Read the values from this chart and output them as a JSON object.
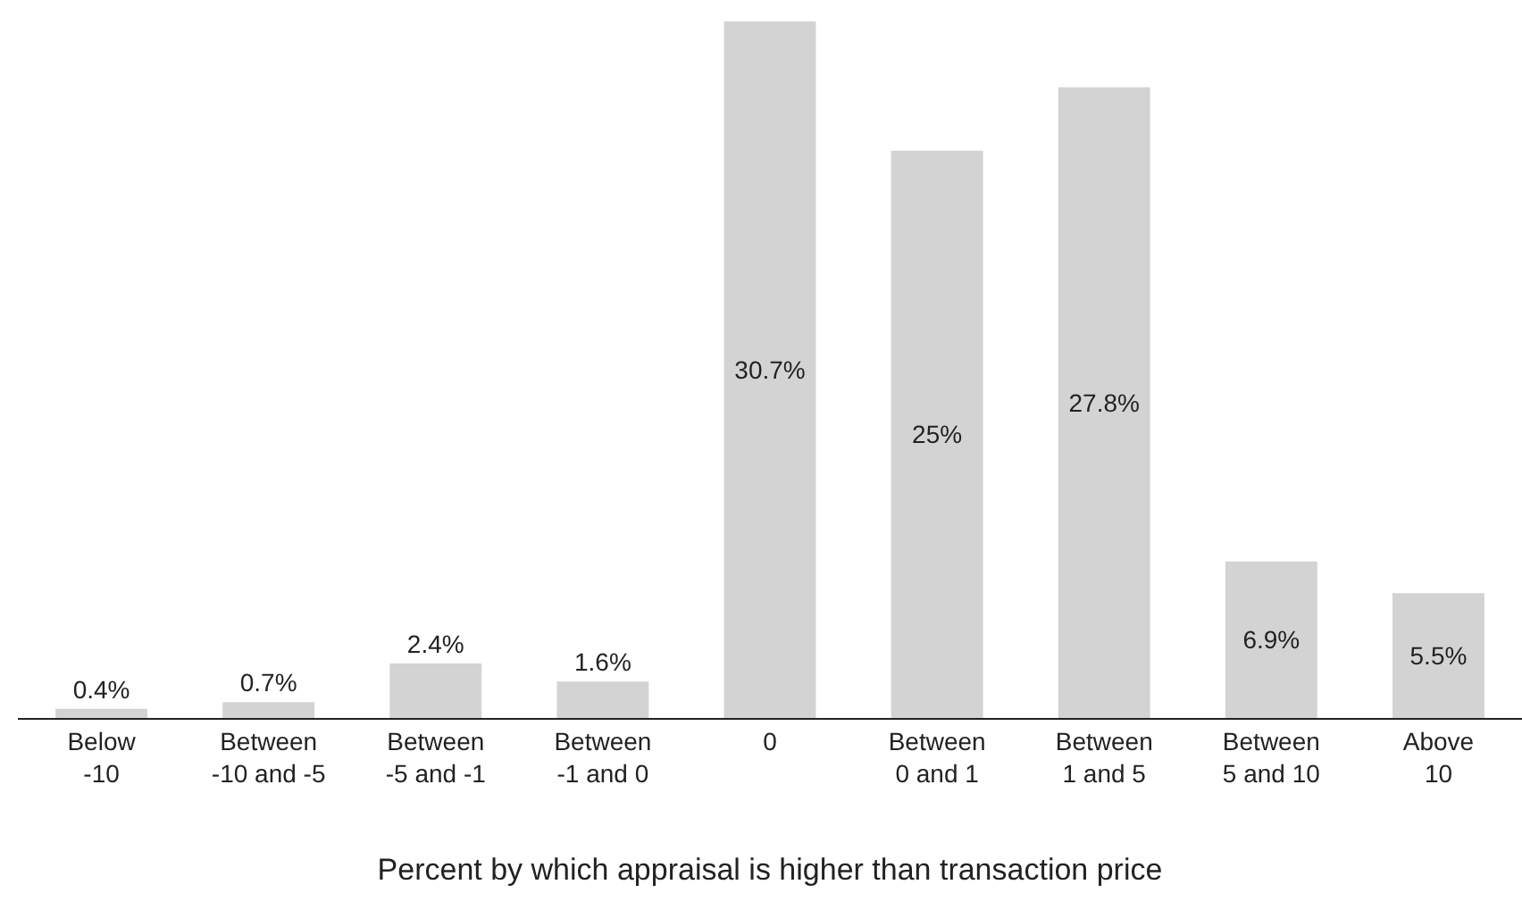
{
  "chart_data": {
    "type": "bar",
    "xlabel": "Percent by which appraisal is higher than transaction price",
    "categories": [
      "Below\n-10",
      "Between\n-10 and -5",
      "Between\n-5 and -1",
      "Between\n-1 and 0",
      "0",
      "Between\n0 and 1",
      "Between\n1 and 5",
      "Between\n5 and 10",
      "Above\n10"
    ],
    "values": [
      0.4,
      0.7,
      2.4,
      1.6,
      30.7,
      25,
      27.8,
      6.9,
      5.5
    ],
    "value_labels": [
      "0.4%",
      "0.7%",
      "2.4%",
      "1.6%",
      "30.7%",
      "25%",
      "27.8%",
      "6.9%",
      "5.5%"
    ],
    "color": "#d3d3d3"
  }
}
